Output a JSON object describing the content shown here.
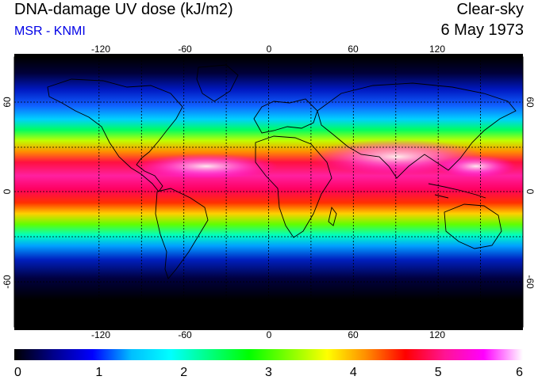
{
  "header": {
    "title": "DNA-damage UV dose (kJ/m2)",
    "subtitle": "MSR - KNMI",
    "condition": "Clear-sky",
    "date": "6 May 1973"
  },
  "map": {
    "lon_ticks": [
      "-120",
      "-60",
      "0",
      "60",
      "120"
    ],
    "lat_ticks": [
      "60",
      "0",
      "-60"
    ],
    "gridlines": "dotted every 30 degrees",
    "colormap": [
      "#000000",
      "#0000ff",
      "#00ffff",
      "#00ff00",
      "#ffff00",
      "#ff0000",
      "#ff00ff",
      "#ffffff"
    ]
  },
  "colorbar": {
    "min": 0,
    "max": 6,
    "labels": [
      "0",
      "1",
      "2",
      "3",
      "4",
      "5",
      "6"
    ],
    "stops": [
      "#000000",
      "#00008b",
      "#0000ff",
      "#00bfff",
      "#00ffff",
      "#00ff7f",
      "#00ff00",
      "#7fff00",
      "#ffff00",
      "#ff8c00",
      "#ff0000",
      "#ff1493",
      "#ff00ff",
      "#ffffff"
    ]
  }
}
